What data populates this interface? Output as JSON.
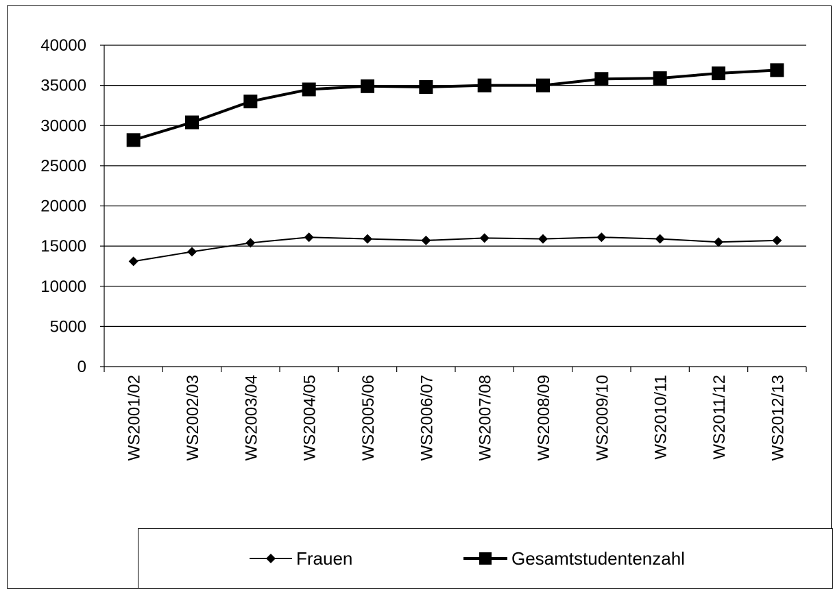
{
  "chart_data": {
    "type": "line",
    "title": "",
    "xlabel": "",
    "ylabel": "",
    "categories": [
      "WS2001/02",
      "WS2002/03",
      "WS2003/04",
      "WS2004/05",
      "WS2005/06",
      "WS2006/07",
      "WS2007/08",
      "WS2008/09",
      "WS2009/10",
      "WS2010/11",
      "WS2011/12",
      "WS2012/13"
    ],
    "ylim": [
      0,
      40000
    ],
    "yticks": [
      0,
      5000,
      10000,
      15000,
      20000,
      25000,
      30000,
      35000,
      40000
    ],
    "ytick_labels": [
      "0",
      "5000",
      "10000",
      "15000",
      "20000",
      "25000",
      "30000",
      "35000",
      "40000"
    ],
    "grid": true,
    "legend_position": "bottom",
    "series": [
      {
        "name": "Frauen",
        "marker": "diamond",
        "color": "#000000",
        "values": [
          13100,
          14300,
          15400,
          16100,
          15900,
          15700,
          16000,
          15900,
          16100,
          15900,
          15500,
          15700
        ]
      },
      {
        "name": "Gesamtstudentenzahl",
        "marker": "square",
        "color": "#000000",
        "values": [
          28200,
          30400,
          33000,
          34500,
          34900,
          34800,
          35000,
          35000,
          35800,
          35900,
          36500,
          36900
        ]
      }
    ]
  }
}
